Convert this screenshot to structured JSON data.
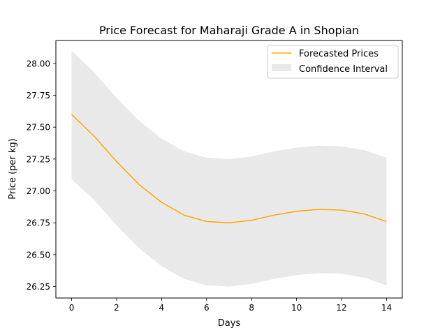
{
  "chart_data": {
    "type": "line",
    "title": "Price Forecast for Maharaji Grade A in Shopian",
    "xlabel": "Days",
    "ylabel": "Price (per kg)",
    "xlim": [
      -0.7,
      14.7
    ],
    "ylim": [
      26.16,
      28.18
    ],
    "xticks": [
      0,
      2,
      4,
      6,
      8,
      10,
      12,
      14
    ],
    "yticks": [
      26.25,
      26.5,
      26.75,
      27.0,
      27.25,
      27.5,
      27.75,
      28.0
    ],
    "ytick_labels": [
      "26.25",
      "26.50",
      "26.75",
      "27.00",
      "27.25",
      "27.50",
      "27.75",
      "28.00"
    ],
    "grid": false,
    "legend_position": "upper-right",
    "x": [
      0,
      1,
      2,
      3,
      4,
      5,
      6,
      7,
      8,
      9,
      10,
      11,
      12,
      13,
      14
    ],
    "series": [
      {
        "name": "Forecasted Prices",
        "color": "#ffa500",
        "values": [
          27.6,
          27.43,
          27.23,
          27.05,
          26.91,
          26.81,
          26.76,
          26.75,
          26.77,
          26.81,
          26.84,
          26.855,
          26.85,
          26.82,
          26.76
        ]
      }
    ],
    "confidence_interval": {
      "name": "Confidence Interval",
      "color": "#d3d3d3",
      "lower": [
        27.09,
        26.93,
        26.73,
        26.55,
        26.41,
        26.31,
        26.26,
        26.25,
        26.27,
        26.31,
        26.34,
        26.355,
        26.35,
        26.32,
        26.26
      ],
      "upper": [
        28.1,
        27.93,
        27.73,
        27.55,
        27.41,
        27.31,
        27.26,
        27.25,
        27.27,
        27.31,
        27.34,
        27.355,
        27.35,
        27.32,
        27.26
      ]
    }
  }
}
